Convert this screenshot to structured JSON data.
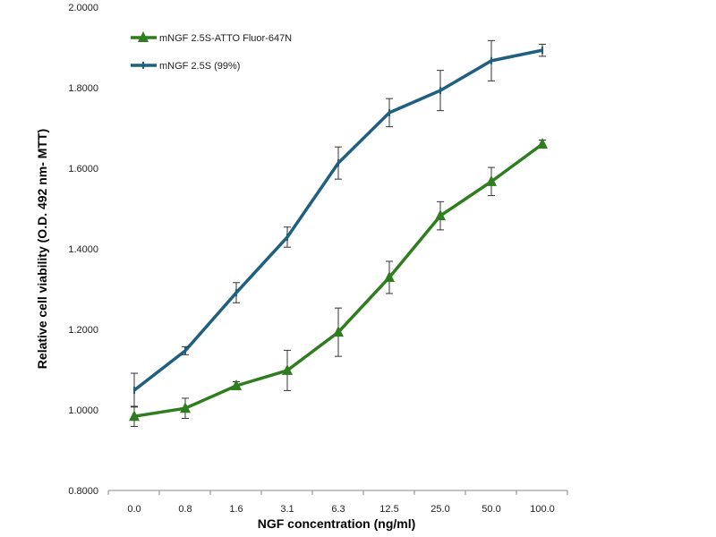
{
  "chart_data": {
    "type": "line",
    "title": "",
    "xlabel": "NGF concentration  (ng/ml)",
    "ylabel": "Relative cell viability (O.D. 492 nm- MTT)",
    "categories": [
      "0.0",
      "0.8",
      "1.6",
      "3.1",
      "6.3",
      "12.5",
      "25.0",
      "50.0",
      "100.0"
    ],
    "ylim": [
      0.8,
      2.0
    ],
    "yticks": [
      "0.8000",
      "1.0000",
      "1.2000",
      "1.4000",
      "1.6000",
      "1.8000",
      "2.0000"
    ],
    "grid": false,
    "legend": "top-left",
    "series": [
      {
        "name": "mNGF 2.5S-ATTO Fluor-647N",
        "color": "#2e7d1e",
        "marker": "triangle",
        "values": [
          0.984,
          1.004,
          1.06,
          1.098,
          1.193,
          1.329,
          1.482,
          1.567,
          1.66
        ],
        "errors": [
          0.025,
          0.025,
          0.01,
          0.05,
          0.06,
          0.04,
          0.035,
          0.035,
          0.01
        ]
      },
      {
        "name": "mNGF 2.5S (99%)",
        "color": "#1f5f7f",
        "marker": "cross",
        "values": [
          1.049,
          1.147,
          1.291,
          1.429,
          1.613,
          1.738,
          1.793,
          1.867,
          1.893
        ],
        "errors": [
          0.042,
          0.01,
          0.025,
          0.025,
          0.04,
          0.035,
          0.05,
          0.05,
          0.015
        ]
      }
    ]
  }
}
